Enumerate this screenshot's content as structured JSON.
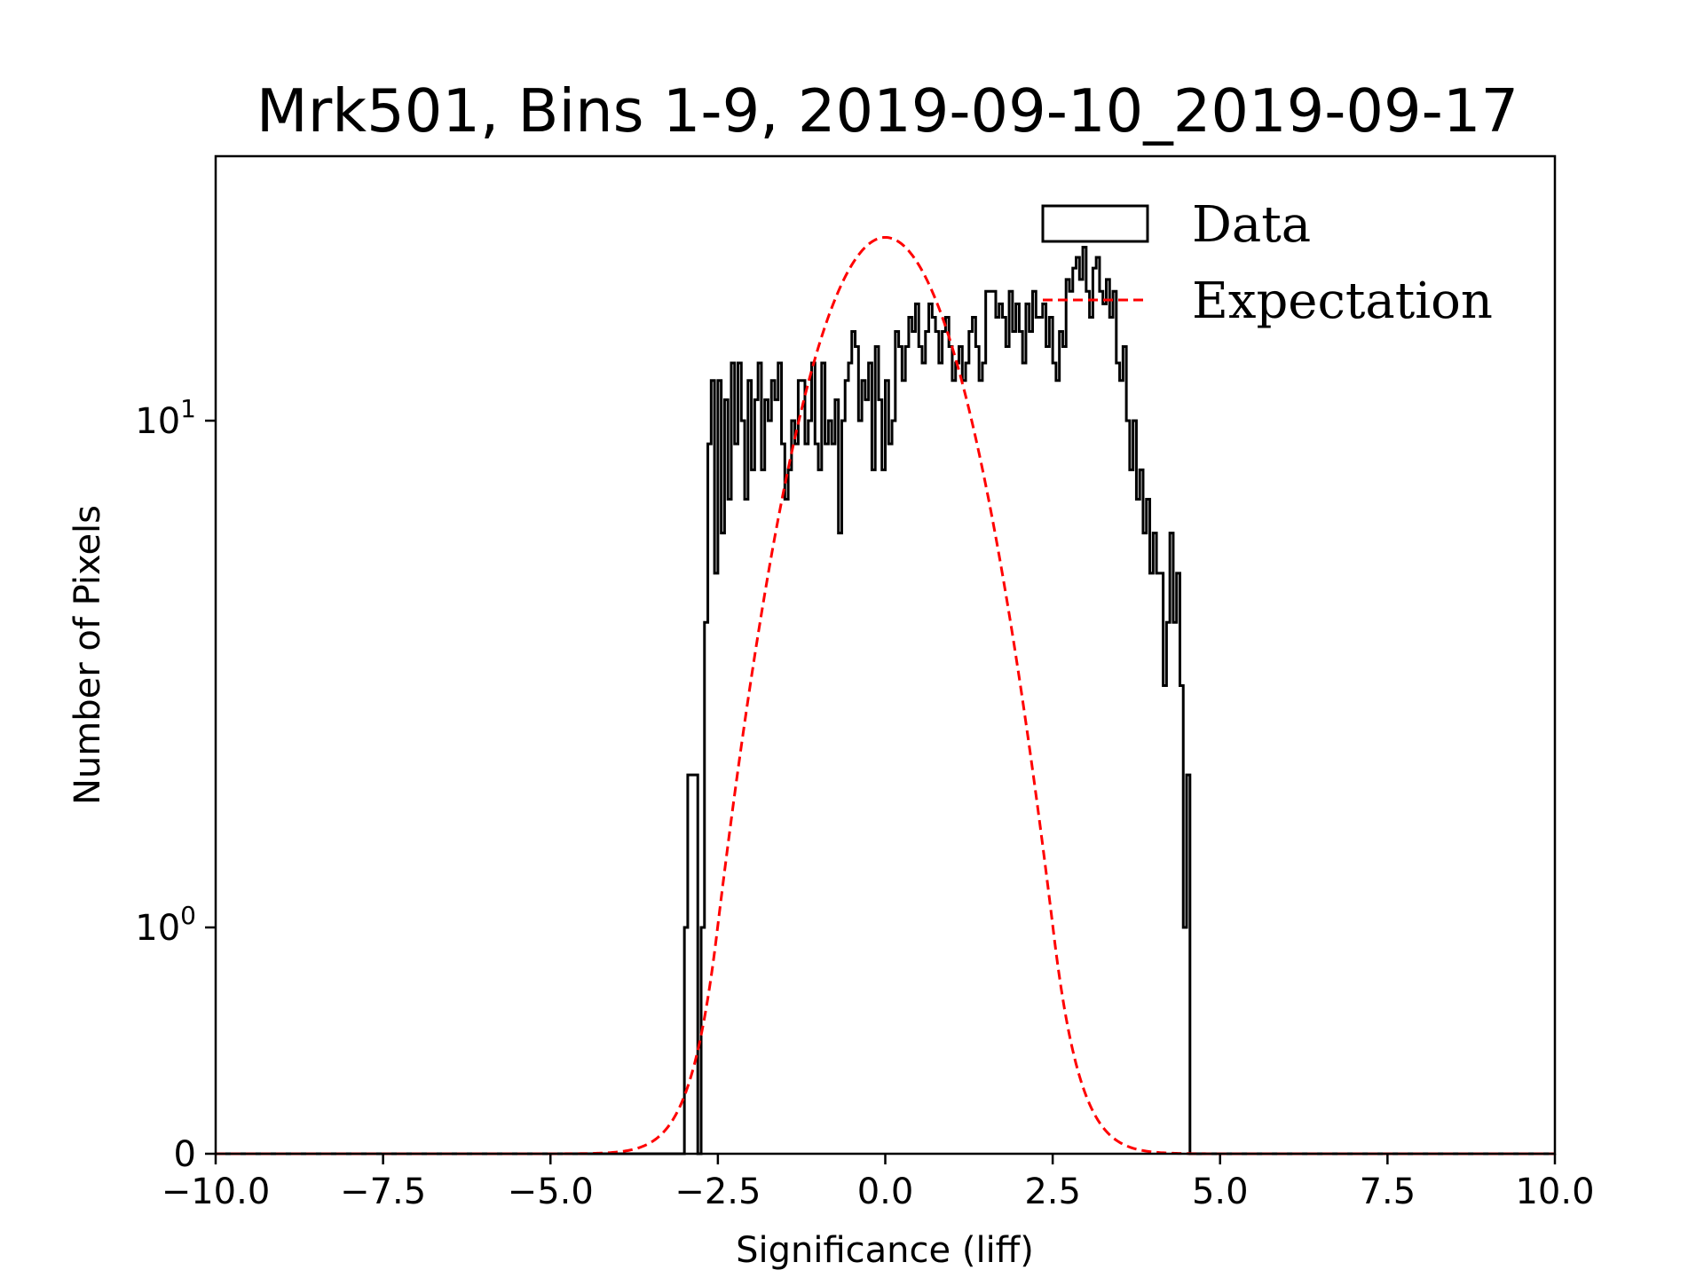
{
  "chart_data": {
    "type": "histogram",
    "title": "Mrk501, Bins 1-9, 2019-09-10_2019-09-17",
    "xlabel": "Significance (liff)",
    "ylabel": "Number of Pixels",
    "xlim": [
      -10,
      10
    ],
    "yscale": "symlog",
    "xticks": [
      -10,
      -7.5,
      -5,
      -2.5,
      0,
      2.5,
      5,
      7.5,
      10
    ],
    "xtick_labels": [
      "−10.0",
      "−7.5",
      "−5.0",
      "−2.5",
      "0.0",
      "2.5",
      "5.0",
      "7.5",
      "10.0"
    ],
    "yticks": [
      {
        "value": 0,
        "base": "0",
        "exp": ""
      },
      {
        "value": 1,
        "base": "10",
        "exp": "0"
      },
      {
        "value": 10,
        "base": "10",
        "exp": "1"
      }
    ],
    "legend": {
      "position": "top-right",
      "entries": [
        {
          "label": "Data",
          "style": "step",
          "color": "#000000"
        },
        {
          "label": "Expectation",
          "style": "dashed",
          "color": "#ff0000"
        }
      ]
    },
    "histogram": {
      "name": "Data",
      "color": "#000000",
      "bin_start": -3.0,
      "bin_width": 0.05,
      "counts": [
        1,
        2,
        2,
        2,
        0,
        1,
        4,
        9,
        12,
        5,
        12,
        6,
        11,
        7,
        13,
        9,
        13,
        10,
        7,
        12,
        8,
        11,
        13,
        8,
        11,
        10,
        12,
        11,
        13,
        9,
        7,
        8,
        10,
        9,
        12,
        12,
        9,
        10,
        13,
        9,
        8,
        13,
        9,
        10,
        9,
        11,
        6,
        10,
        12,
        13,
        15,
        14,
        10,
        12,
        11,
        13,
        8,
        14,
        11,
        8,
        12,
        9,
        10,
        15,
        14,
        12,
        14,
        16,
        15,
        17,
        14,
        13,
        15,
        17,
        16,
        15,
        13,
        15,
        16,
        14,
        12,
        13,
        14,
        12,
        13,
        15,
        16,
        14,
        12,
        13,
        18,
        18,
        18,
        16,
        17,
        16,
        14,
        18,
        15,
        17,
        15,
        13,
        17,
        15,
        18,
        16,
        16,
        17,
        14,
        16,
        13,
        12,
        15,
        14,
        19,
        18,
        20,
        21,
        19,
        22,
        18,
        16,
        20,
        21,
        18,
        17,
        19,
        16,
        18,
        13,
        12,
        14,
        10,
        8,
        10,
        7,
        8,
        6,
        7,
        5,
        6,
        5,
        5,
        3,
        4,
        6,
        4,
        5,
        3,
        1,
        2
      ]
    },
    "expectation": {
      "name": "Expectation",
      "color": "#ff0000",
      "style": "dashed",
      "peak": 23,
      "mean": 0,
      "sigma": 1
    }
  }
}
